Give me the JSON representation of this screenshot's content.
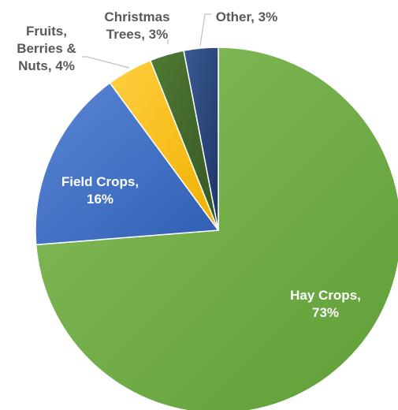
{
  "chart_data": {
    "type": "pie",
    "title": "",
    "start_angle_deg": 0,
    "direction": "clockwise",
    "slices": [
      {
        "name": "Hay Crops",
        "value": 73,
        "label_lines": [
          "Hay Crops,",
          "73%"
        ],
        "color": "#70ad47",
        "label_style": "inside"
      },
      {
        "name": "Field Crops",
        "value": 16,
        "label_lines": [
          "Field Crops,",
          "16%"
        ],
        "color": "#4472c4",
        "label_style": "inside"
      },
      {
        "name": "Fruits, Berries & Nuts",
        "value": 4,
        "label_lines": [
          "Fruits,",
          "Berries &",
          "Nuts, 4%"
        ],
        "color": "#ffc000",
        "label_style": "outside"
      },
      {
        "name": "Christmas Trees",
        "value": 3,
        "label_lines": [
          "Christmas",
          "Trees, 3%"
        ],
        "color": "#43682b",
        "label_style": "outside"
      },
      {
        "name": "Other",
        "value": 3,
        "label_lines": [
          "Other, 3%"
        ],
        "color": "#264478",
        "label_style": "outside"
      }
    ]
  }
}
